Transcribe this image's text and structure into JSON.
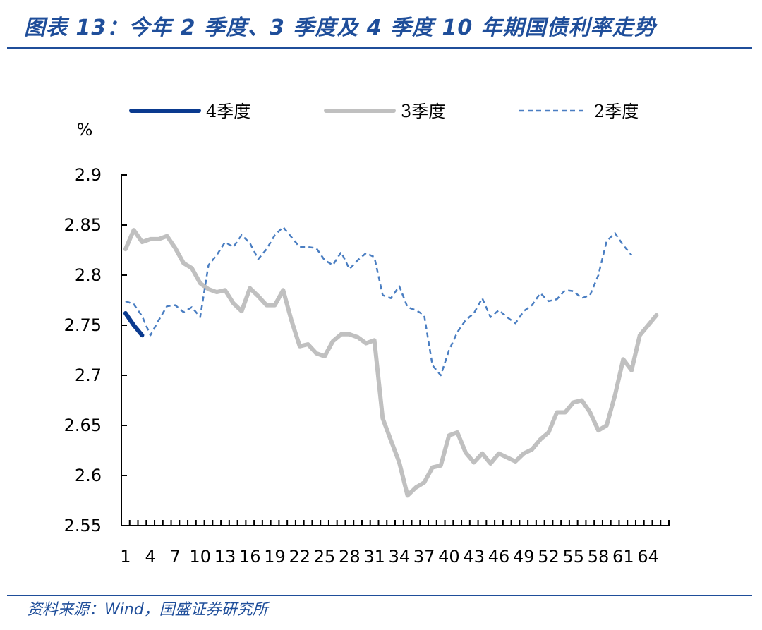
{
  "header": {
    "title": "图表 13：今年 2 季度、3 季度及 4 季度 10 年期国债利率走势"
  },
  "footer": {
    "source": "资料来源：Wind，国盛证券研究所"
  },
  "chart_data": {
    "type": "line",
    "unit_label": "%",
    "ylim": [
      2.55,
      2.9
    ],
    "yticks": [
      "2.55",
      "2.6",
      "2.65",
      "2.7",
      "2.75",
      "2.8",
      "2.85",
      "2.9"
    ],
    "xticks": [
      "1",
      "4",
      "7",
      "10",
      "13",
      "16",
      "19",
      "22",
      "25",
      "28",
      "31",
      "34",
      "37",
      "40",
      "43",
      "46",
      "49",
      "52",
      "55",
      "58",
      "61",
      "64"
    ],
    "x_count": 66,
    "legend_position": "top",
    "series": [
      {
        "name": "4季度",
        "color": "#0a3a8f",
        "style": "solid-thick",
        "values": [
          2.762,
          2.75,
          2.74
        ]
      },
      {
        "name": "3季度",
        "color": "#c0c0c0",
        "style": "solid-thick",
        "values": [
          2.826,
          2.845,
          2.833,
          2.836,
          2.836,
          2.839,
          2.827,
          2.812,
          2.807,
          2.792,
          2.786,
          2.783,
          2.785,
          2.772,
          2.764,
          2.787,
          2.779,
          2.77,
          2.77,
          2.785,
          2.755,
          2.729,
          2.731,
          2.722,
          2.719,
          2.734,
          2.741,
          2.741,
          2.738,
          2.732,
          2.735,
          2.657,
          2.635,
          2.613,
          2.58,
          2.588,
          2.593,
          2.608,
          2.61,
          2.64,
          2.643,
          2.623,
          2.613,
          2.622,
          2.612,
          2.622,
          2.618,
          2.614,
          2.622,
          2.626,
          2.636,
          2.643,
          2.663,
          2.663,
          2.673,
          2.675,
          2.663,
          2.645,
          2.65,
          2.68,
          2.716,
          2.705,
          2.74,
          2.75,
          2.76
        ]
      },
      {
        "name": "2季度",
        "color": "#4a7ec2",
        "style": "dashed",
        "values": [
          2.774,
          2.771,
          2.759,
          2.74,
          2.755,
          2.769,
          2.77,
          2.763,
          2.768,
          2.758,
          2.81,
          2.82,
          2.833,
          2.828,
          2.84,
          2.832,
          2.816,
          2.826,
          2.84,
          2.848,
          2.838,
          2.828,
          2.828,
          2.827,
          2.815,
          2.81,
          2.823,
          2.806,
          2.815,
          2.822,
          2.818,
          2.78,
          2.777,
          2.789,
          2.768,
          2.765,
          2.76,
          2.71,
          2.7,
          2.725,
          2.743,
          2.755,
          2.762,
          2.777,
          2.758,
          2.765,
          2.758,
          2.752,
          2.764,
          2.77,
          2.782,
          2.774,
          2.776,
          2.785,
          2.784,
          2.777,
          2.78,
          2.8,
          2.834,
          2.842,
          2.83,
          2.82
        ]
      }
    ]
  }
}
